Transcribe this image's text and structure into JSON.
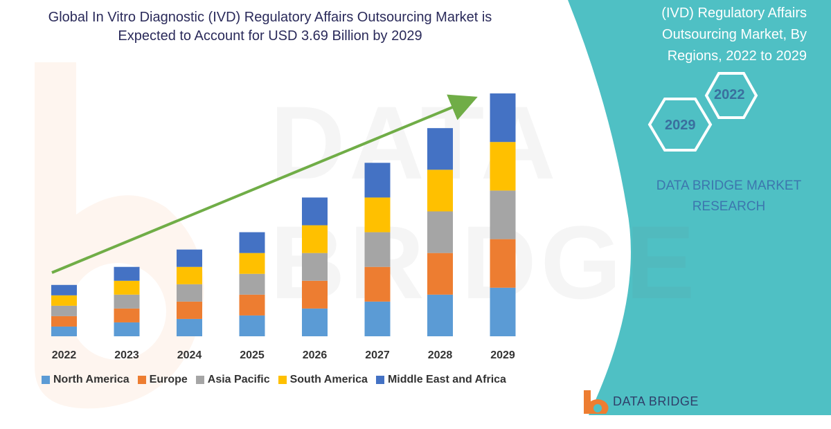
{
  "chart_data": {
    "type": "bar",
    "stacked": true,
    "title": "Global In Vitro Diagnostic (IVD) Regulatory Affairs Outsourcing Market is Expected to Account for USD 3.69 Billion by 2029",
    "categories": [
      "2022",
      "2023",
      "2024",
      "2025",
      "2026",
      "2027",
      "2028",
      "2029"
    ],
    "series": [
      {
        "name": "North America",
        "color": "#5b9bd5",
        "values": [
          14,
          20,
          25,
          30,
          40,
          50,
          60,
          70
        ]
      },
      {
        "name": "Europe",
        "color": "#ed7d31",
        "values": [
          15,
          20,
          25,
          30,
          40,
          50,
          60,
          70
        ]
      },
      {
        "name": "Asia Pacific",
        "color": "#a5a5a5",
        "values": [
          15,
          20,
          25,
          30,
          40,
          50,
          60,
          70
        ]
      },
      {
        "name": "South America",
        "color": "#ffc000",
        "values": [
          15,
          20,
          25,
          30,
          40,
          50,
          60,
          70
        ]
      },
      {
        "name": "Middle East and Africa",
        "color": "#4472c4",
        "values": [
          15,
          20,
          25,
          30,
          40,
          50,
          60,
          70
        ]
      }
    ],
    "xlabel": "",
    "ylabel": "",
    "grid": false,
    "legend_position": "bottom",
    "trend_arrow_color": "#70ad47"
  },
  "panel": {
    "title_line1": "(IVD) Regulatory Affairs",
    "title_line2": "Outsourcing Market, By",
    "title_line3": "Regions, 2022 to 2029",
    "hex_year_start": "2022",
    "hex_year_end": "2029",
    "brand_line1": "DATA BRIDGE MARKET",
    "brand_line2": "RESEARCH",
    "background_color": "#4fc0c4"
  },
  "footer": {
    "logo_text": "DATA BRIDGE"
  },
  "watermark": {
    "text": "DATA BRIDGE"
  }
}
